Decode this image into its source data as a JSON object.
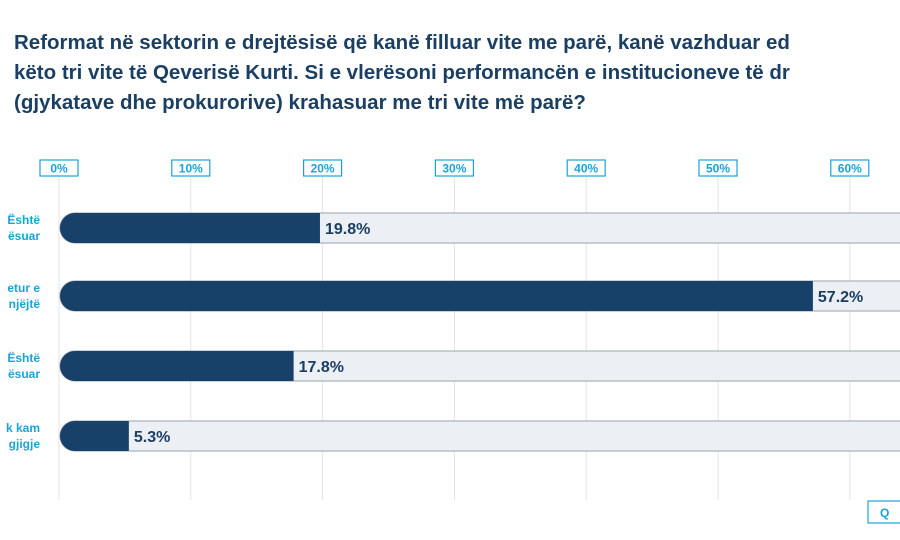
{
  "title_lines": [
    "Reformat në sektorin e drejtësisë që kanë filluar vite me parë, kanë vazhduar ed",
    "këto tri vite të Qeverisë Kurti. Si e vlerësoni performancën e institucioneve të dr",
    "(gjykatave dhe prokurorive) krahasuar me tri vite më parë?"
  ],
  "corner_label": "Q",
  "colors": {
    "bar": "#174169",
    "bar_background": "#eceff3",
    "accent": "#1aa3d8",
    "title": "#1b3f63"
  },
  "chart_data": {
    "type": "bar",
    "orientation": "horizontal",
    "categories": [
      [
        "Është",
        "ësuar"
      ],
      [
        "etur e",
        "njëjtë"
      ],
      [
        "Është",
        "ësuar"
      ],
      [
        "k kam",
        "gjigje"
      ]
    ],
    "values": [
      19.8,
      57.2,
      17.8,
      5.3
    ],
    "value_labels": [
      "19.8%",
      "57.2%",
      "17.8%",
      "5.3%"
    ],
    "xticks": [
      "0%",
      "10%",
      "20%",
      "30%",
      "40%",
      "50%",
      "60%"
    ],
    "xtick_values": [
      0,
      10,
      20,
      30,
      40,
      50,
      60
    ],
    "axis_position": "top",
    "grid": true
  }
}
